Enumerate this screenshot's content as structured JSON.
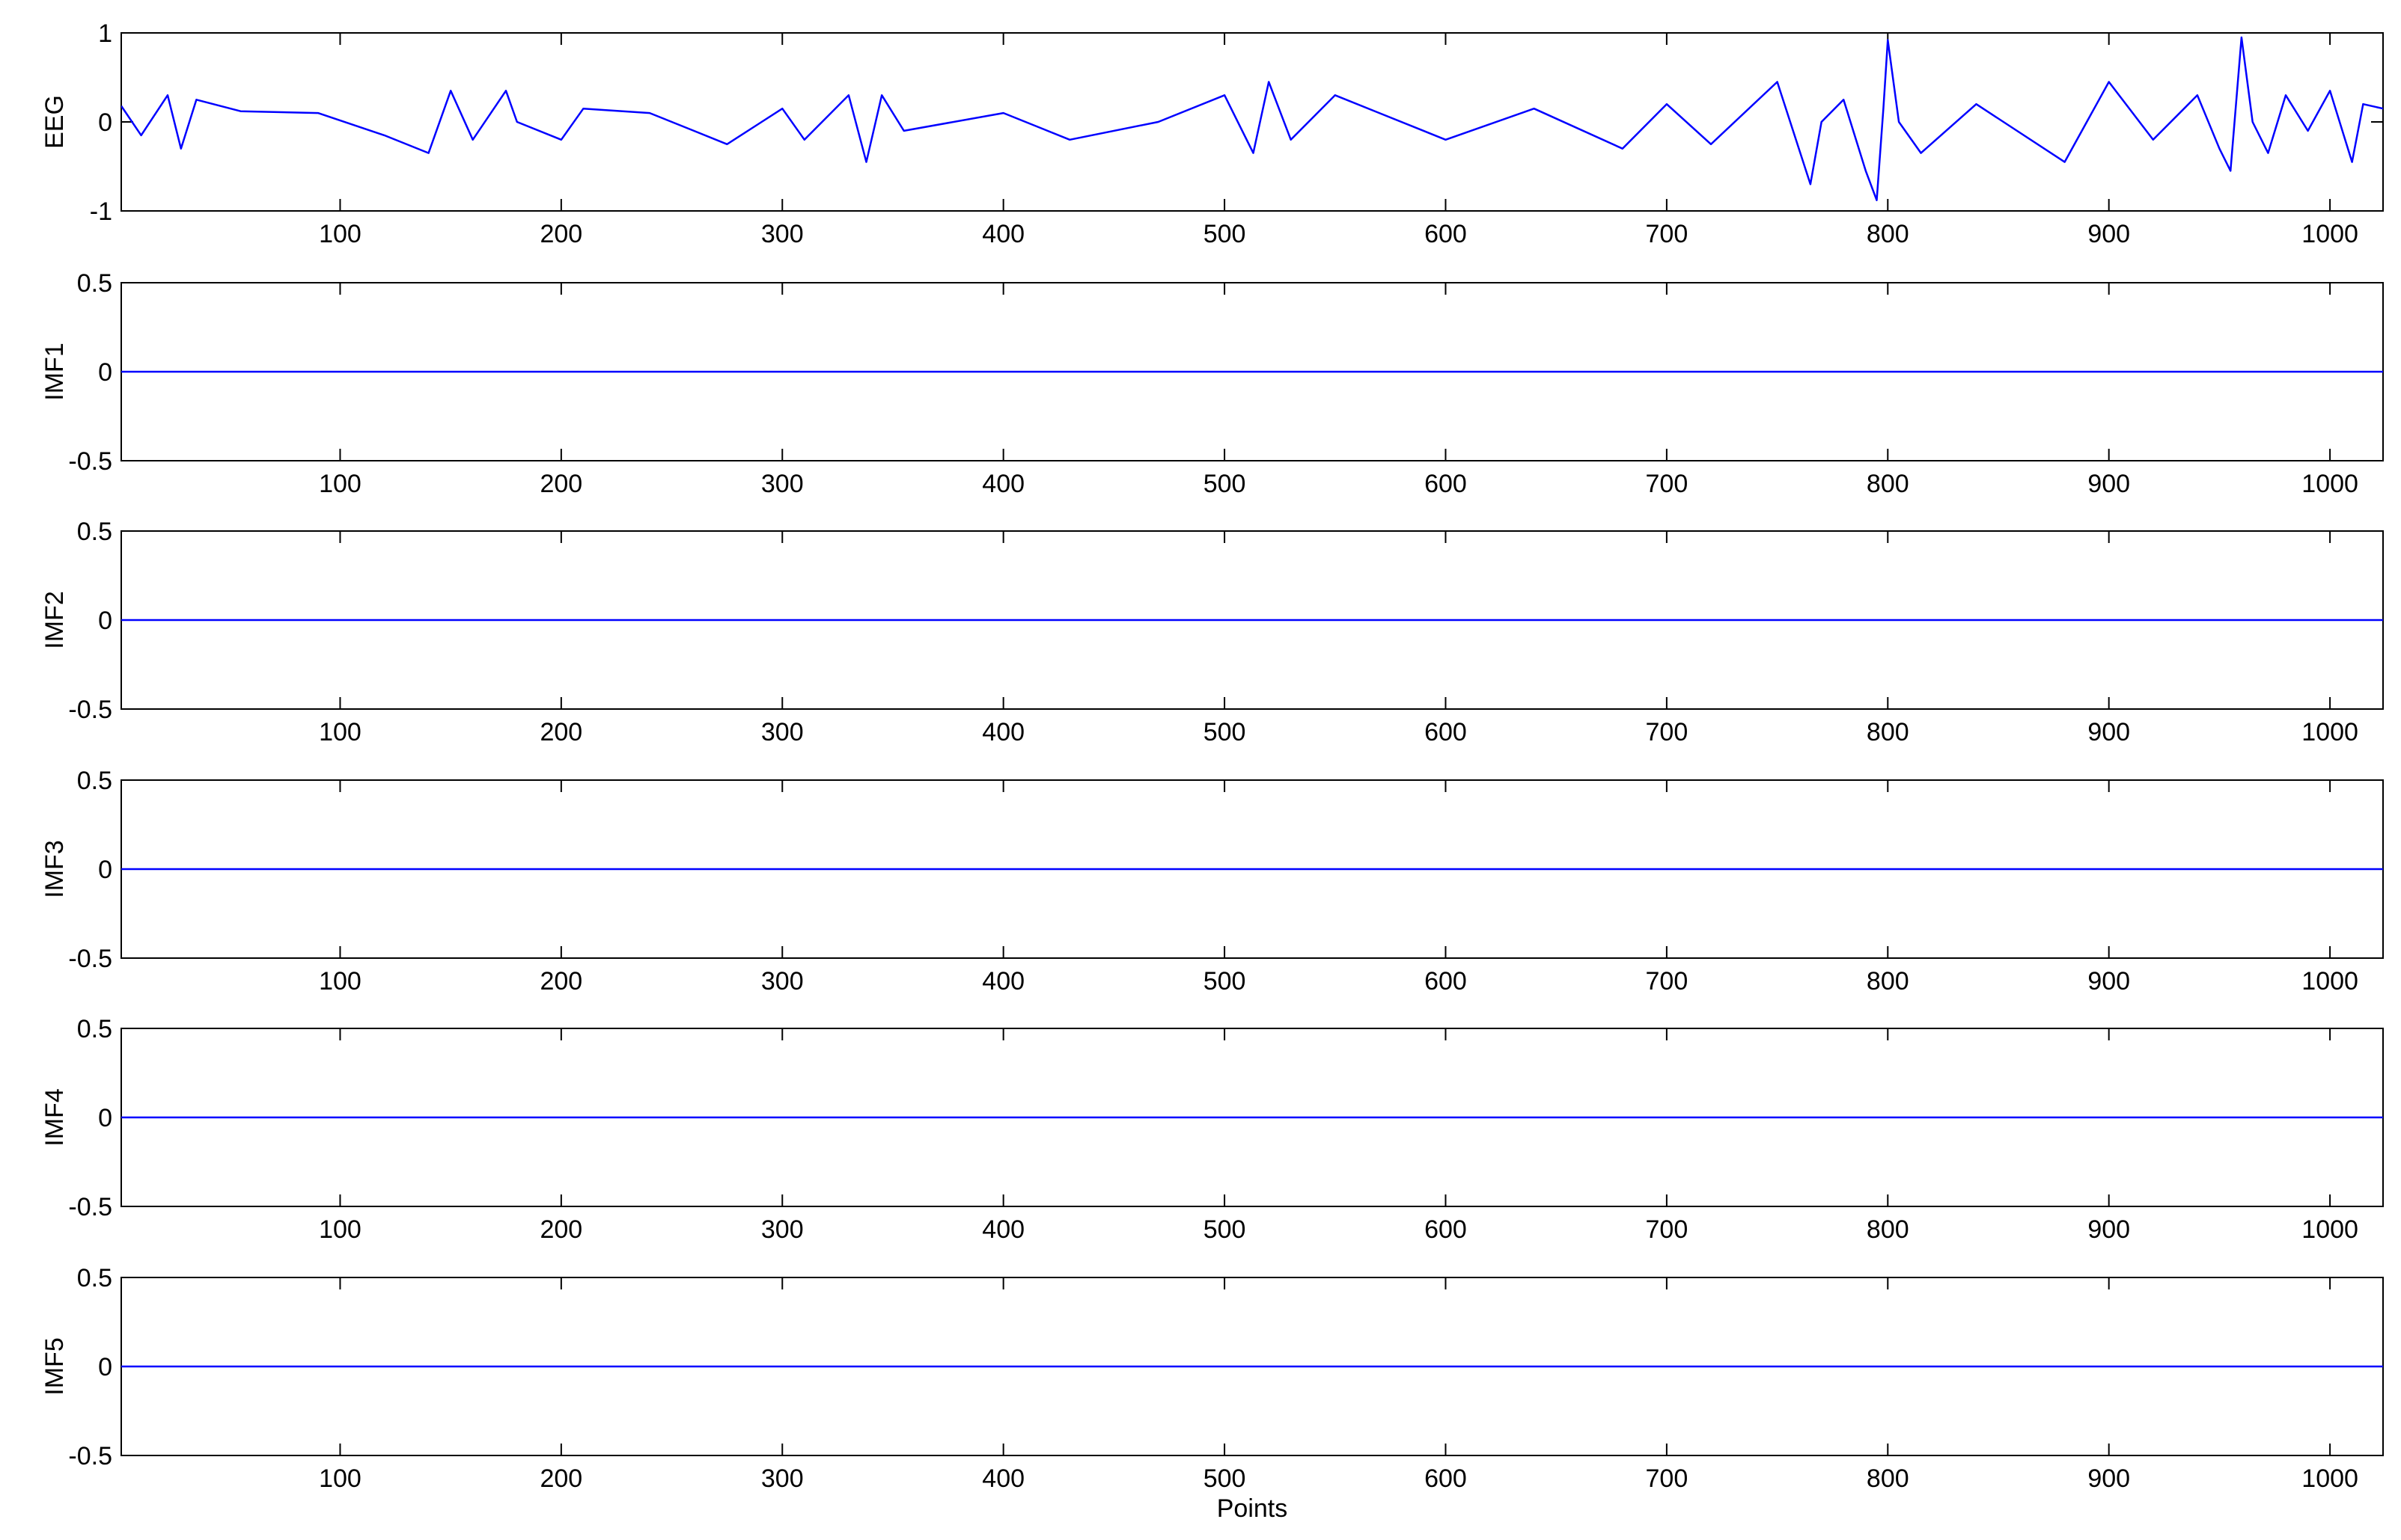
{
  "chart_data": {
    "type": "line",
    "xlabel": "Points",
    "xlim": [
      1,
      1024
    ],
    "xticks": [
      100,
      200,
      300,
      400,
      500,
      600,
      700,
      800,
      900,
      1000
    ],
    "line_color": "#0000ff",
    "grid": false,
    "panels": [
      {
        "ylabel": "EEG",
        "ylim": [
          -1,
          1
        ],
        "yticks": [
          -1,
          0,
          1
        ],
        "ytick_labels": [
          "-1",
          "0",
          "1"
        ],
        "series": [
          {
            "x": [
              1,
              10,
              22,
              28,
              35,
              55,
              90,
              120,
              140,
              150,
              160,
              175,
              180,
              200,
              210,
              240,
              260,
              275,
              300,
              310,
              330,
              338,
              345,
              355,
              400,
              430,
              470,
              500,
              513,
              520,
              530,
              550,
              570,
              600,
              640,
              680,
              700,
              720,
              750,
              765,
              770,
              780,
              790,
              795,
              798,
              800,
              805,
              815,
              840,
              880,
              900,
              920,
              940,
              950,
              955,
              960,
              965,
              972,
              980,
              990,
              1000,
              1010,
              1015,
              1024
            ],
            "y": [
              0.18,
              -0.15,
              0.3,
              -0.3,
              0.25,
              0.12,
              0.1,
              -0.15,
              -0.35,
              0.35,
              -0.2,
              0.35,
              0.0,
              -0.2,
              0.15,
              0.1,
              -0.1,
              -0.25,
              0.15,
              -0.2,
              0.3,
              -0.45,
              0.3,
              -0.1,
              0.1,
              -0.2,
              0.0,
              0.3,
              -0.35,
              0.45,
              -0.2,
              0.3,
              0.1,
              -0.2,
              0.15,
              -0.3,
              0.2,
              -0.25,
              0.45,
              -0.7,
              0.0,
              0.25,
              -0.55,
              -0.88,
              0.15,
              0.92,
              0.0,
              -0.35,
              0.2,
              -0.45,
              0.45,
              -0.2,
              0.3,
              -0.3,
              -0.55,
              0.95,
              0.0,
              -0.35,
              0.3,
              -0.1,
              0.35,
              -0.45,
              0.2,
              0.15
            ]
          }
        ]
      },
      {
        "ylabel": "IMF1",
        "ylim": [
          -0.5,
          0.5
        ],
        "yticks": [
          -0.5,
          0,
          0.5
        ],
        "ytick_labels": [
          "-0.5",
          "0",
          "0.5"
        ],
        "series": [
          {
            "x": [
              1,
              100,
              200,
              300,
              400,
              500,
              600,
              700,
              800,
              900,
              1000,
              1024
            ],
            "y": [
              0.0,
              0.0,
              0.0,
              0.0,
              0.0,
              0.0,
              0.0,
              0.0,
              0.0,
              0.0,
              0.0,
              0.0
            ]
          }
        ]
      },
      {
        "ylabel": "IMF2",
        "ylim": [
          -0.5,
          0.5
        ],
        "yticks": [
          -0.5,
          0,
          0.5
        ],
        "ytick_labels": [
          "-0.5",
          "0",
          "0.5"
        ],
        "series": [
          {
            "x": [
              1,
              100,
              200,
              300,
              400,
              500,
              600,
              700,
              800,
              900,
              1000,
              1024
            ],
            "y": [
              0.0,
              0.0,
              0.0,
              0.0,
              0.0,
              0.0,
              0.0,
              0.0,
              0.0,
              0.0,
              0.0,
              0.0
            ]
          }
        ]
      },
      {
        "ylabel": "IMF3",
        "ylim": [
          -0.5,
          0.5
        ],
        "yticks": [
          -0.5,
          0,
          0.5
        ],
        "ytick_labels": [
          "-0.5",
          "0",
          "0.5"
        ],
        "series": [
          {
            "x": [
              1,
              100,
              200,
              300,
              400,
              500,
              600,
              700,
              800,
              900,
              1000,
              1024
            ],
            "y": [
              0.0,
              0.0,
              0.0,
              0.0,
              0.0,
              0.0,
              0.0,
              0.0,
              0.0,
              0.0,
              0.0,
              0.0
            ]
          }
        ]
      },
      {
        "ylabel": "IMF4",
        "ylim": [
          -0.5,
          0.5
        ],
        "yticks": [
          -0.5,
          0,
          0.5
        ],
        "ytick_labels": [
          "-0.5",
          "0",
          "0.5"
        ],
        "series": [
          {
            "x": [
              1,
              100,
              200,
              300,
              400,
              500,
              600,
              700,
              800,
              900,
              1000,
              1024
            ],
            "y": [
              0.0,
              0.0,
              0.0,
              0.0,
              0.0,
              0.0,
              0.0,
              0.0,
              0.0,
              0.0,
              0.0,
              0.0
            ]
          }
        ]
      },
      {
        "ylabel": "IMF5",
        "ylim": [
          -0.5,
          0.5
        ],
        "yticks": [
          -0.5,
          0,
          0.5
        ],
        "ytick_labels": [
          "-0.5",
          "0",
          "0.5"
        ],
        "series": [
          {
            "x": [
              1,
              100,
              200,
              300,
              400,
              500,
              600,
              700,
              800,
              900,
              1000,
              1024
            ],
            "y": [
              0.0,
              0.0,
              0.0,
              0.0,
              0.0,
              0.0,
              0.0,
              0.0,
              0.0,
              0.0,
              0.0,
              0.0
            ]
          }
        ]
      }
    ]
  }
}
